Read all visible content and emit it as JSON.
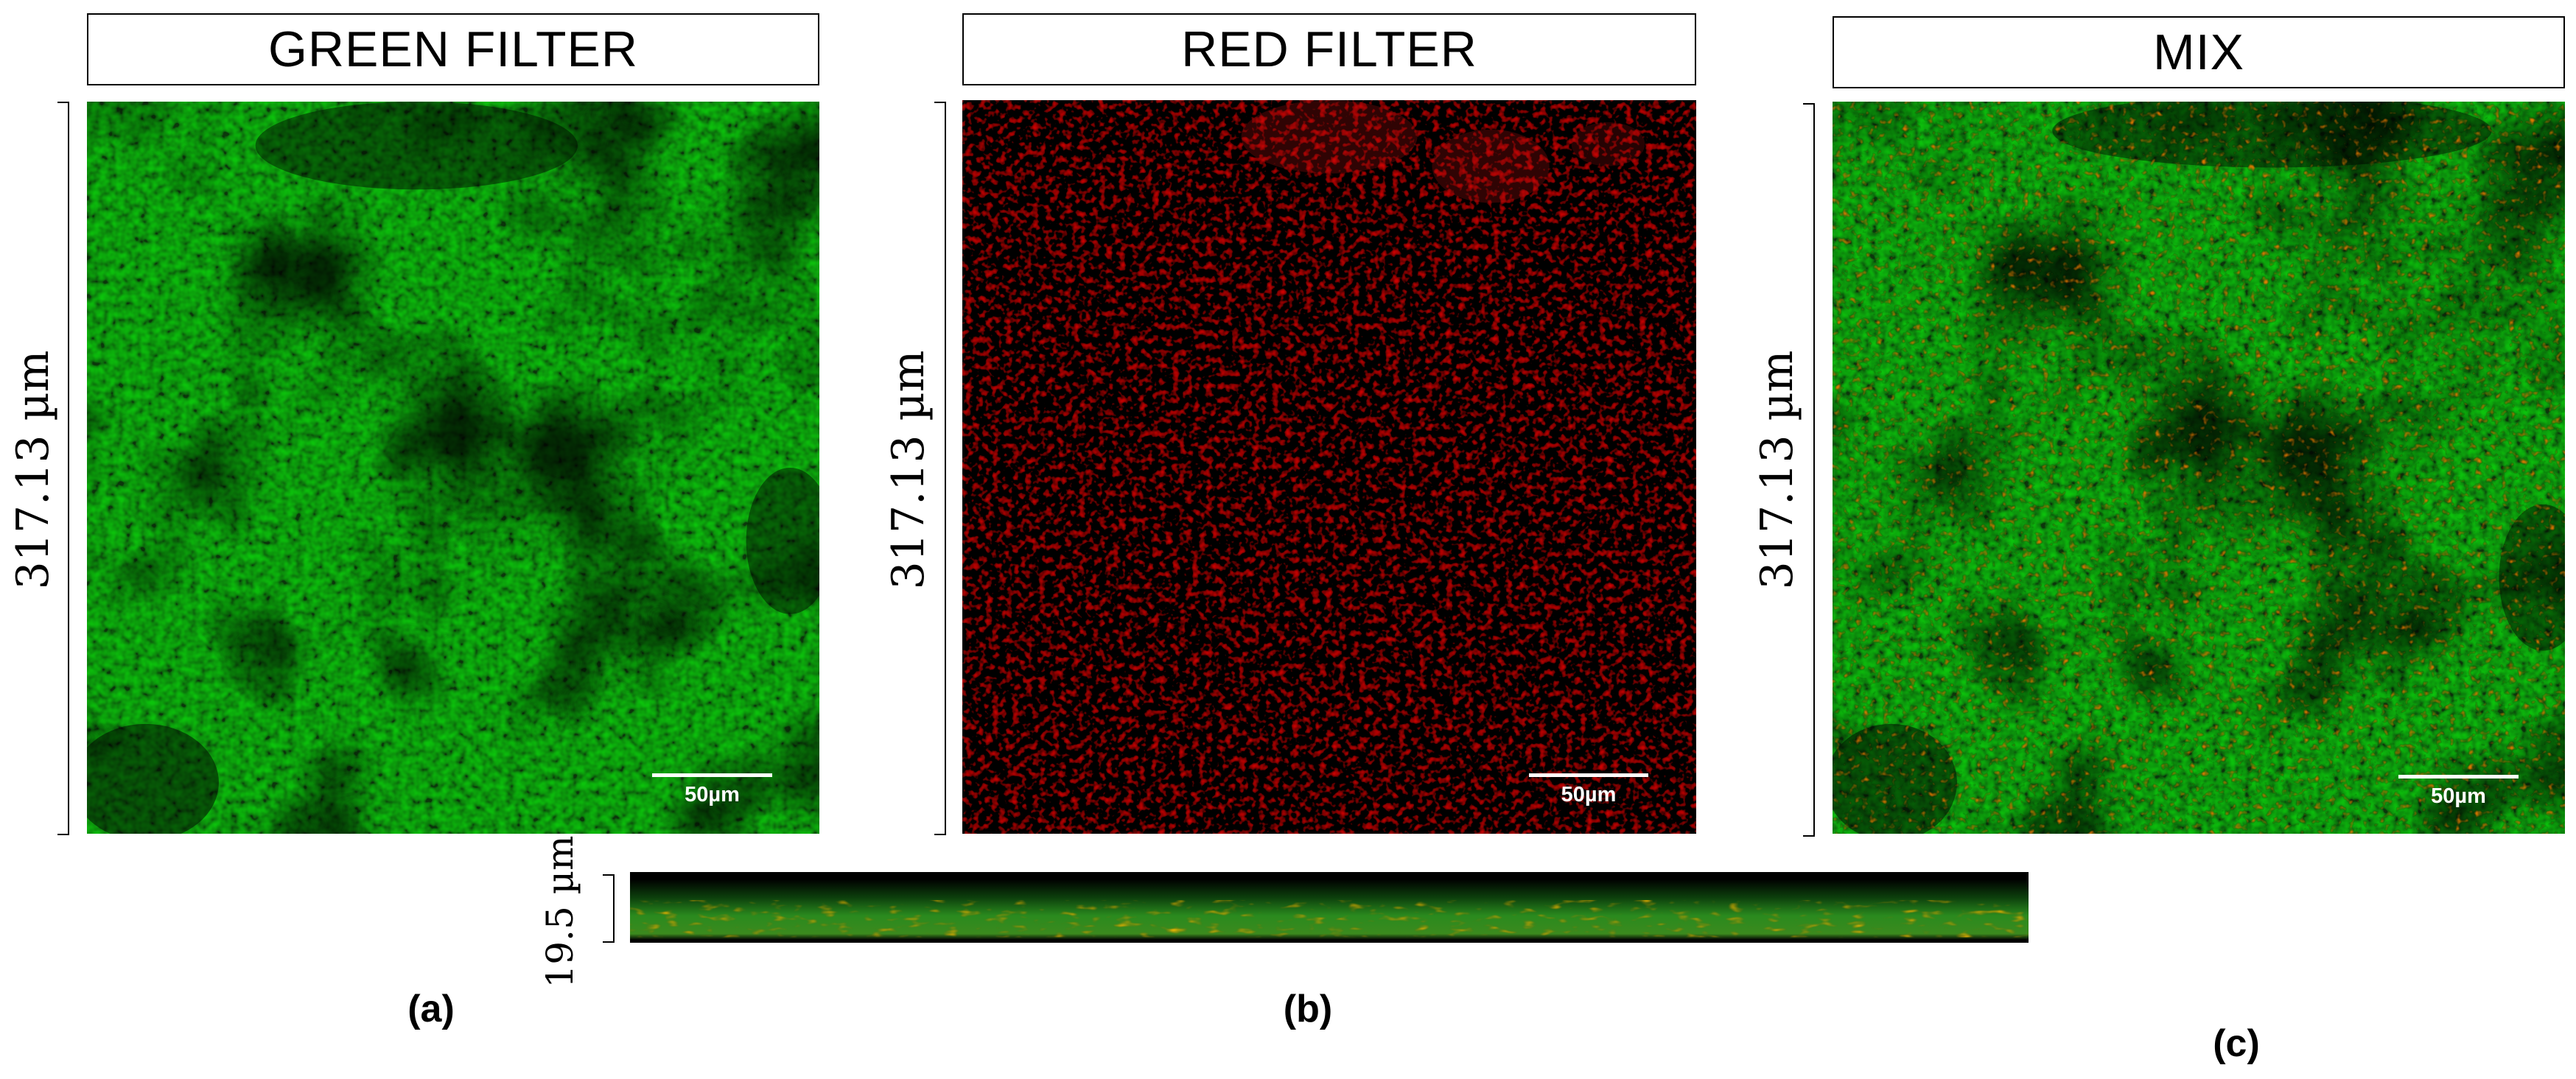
{
  "panels": [
    {
      "title": "GREEN FILTER",
      "scale_bar": "50µm",
      "height_label": "317.13 µm",
      "sub_label": "(a)"
    },
    {
      "title": "RED FILTER",
      "scale_bar": "50µm",
      "height_label": "317.13 µm",
      "sub_label": "(b)"
    },
    {
      "title": "MIX",
      "scale_bar": "50µm",
      "height_label": "317.13 µm",
      "sub_label": "(c)"
    }
  ],
  "cross_section": {
    "height_label": "19.5 µm"
  },
  "colors": {
    "green_channel": "#1f8a1f",
    "red_channel": "#d81a1a",
    "background": "#000000"
  }
}
